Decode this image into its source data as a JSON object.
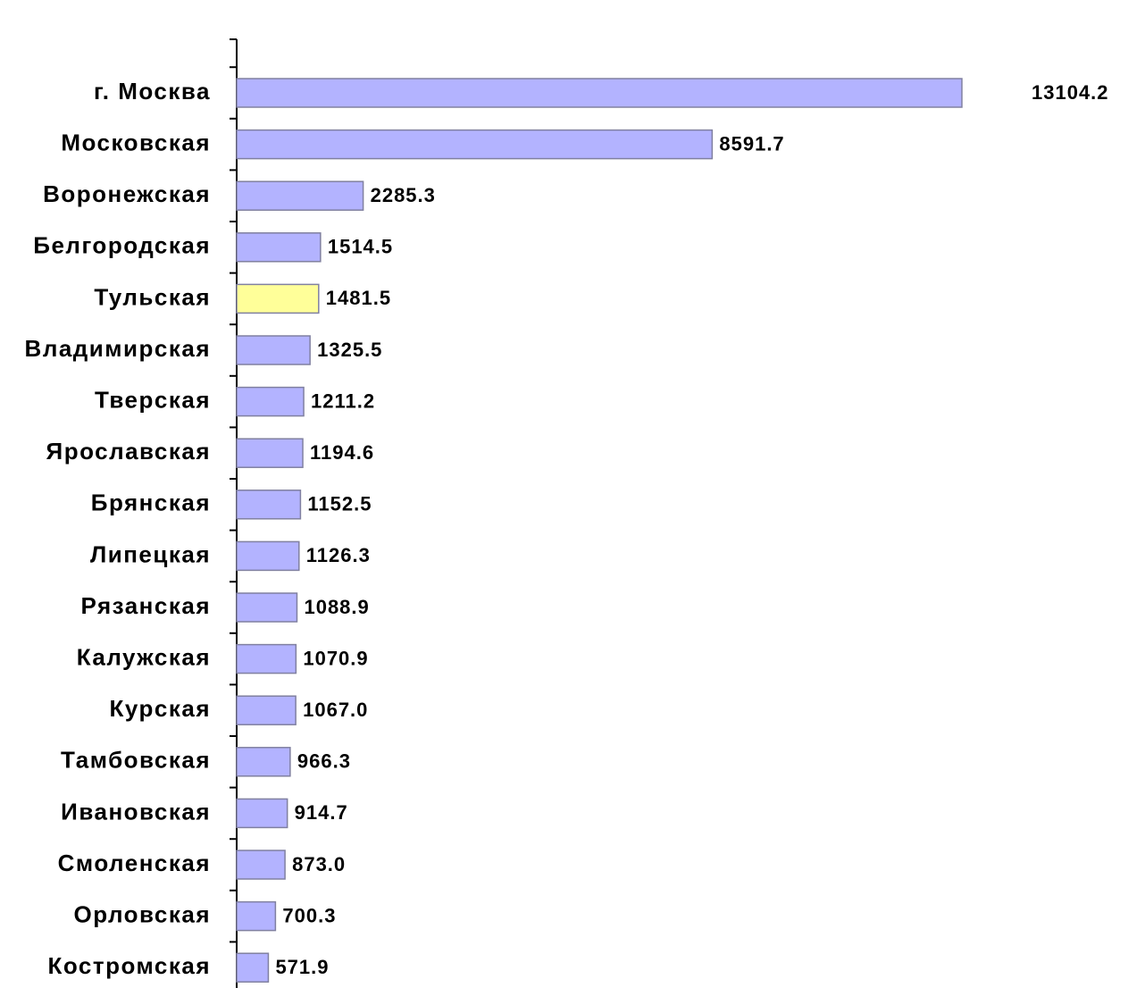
{
  "chart_data": {
    "type": "barh",
    "categories": [
      "г. Москва",
      "Московская",
      "Воронежская",
      "Белгородская",
      "Тульская",
      "Владимирская",
      "Тверская",
      "Ярославская",
      "Брянская",
      "Липецкая",
      "Рязанская",
      "Калужская",
      "Курская",
      "Тамбовская",
      "Ивановская",
      "Смоленская",
      "Орловская",
      "Костромская"
    ],
    "values": [
      13104.2,
      8591.7,
      2285.3,
      1514.5,
      1481.5,
      1325.5,
      1211.2,
      1194.6,
      1152.5,
      1126.3,
      1088.9,
      1070.9,
      1067.0,
      966.3,
      914.7,
      873.0,
      700.3,
      571.9
    ],
    "value_labels": [
      "13104.2",
      "8591.7",
      "2285.3",
      "1514.5",
      "1481.5",
      "1325.5",
      "1211.2",
      "1194.6",
      "1152.5",
      "1126.3",
      "1088.9",
      "1070.9",
      "1067.0",
      "966.3",
      "914.7",
      "873.0",
      "700.3",
      "571.9"
    ],
    "colors": [
      "#b3b3ff",
      "#b3b3ff",
      "#b3b3ff",
      "#b3b3ff",
      "#ffff99",
      "#b3b3ff",
      "#b3b3ff",
      "#b3b3ff",
      "#b3b3ff",
      "#b3b3ff",
      "#b3b3ff",
      "#b3b3ff",
      "#b3b3ff",
      "#b3b3ff",
      "#b3b3ff",
      "#b3b3ff",
      "#b3b3ff",
      "#b3b3ff"
    ]
  }
}
